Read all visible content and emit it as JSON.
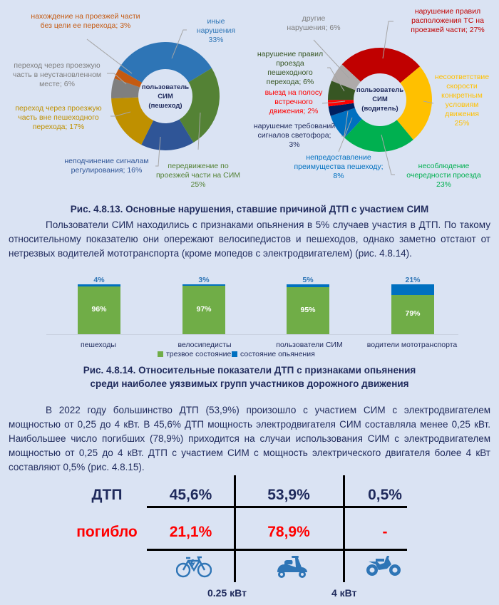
{
  "chart_data": [
    {
      "type": "pie",
      "title": "пользователь СИМ (пешеход)",
      "categories": [
        "иные нарушения",
        "передвижение по проезжей части на СИМ",
        "неподчинение сигналам регулирования",
        "переход через проезжую часть вне пешеходного перехода",
        "переход через проезжую часть в неустановленном месте",
        "нахождение на проезжей части без цели ее перехода"
      ],
      "values": [
        33,
        25,
        16,
        17,
        6,
        3
      ],
      "colors": [
        "#2e75b6",
        "#548235",
        "#2f5597",
        "#bf9000",
        "#7f7f7f",
        "#c55a11"
      ]
    },
    {
      "type": "pie",
      "title": "пользователь СИМ (водитель)",
      "categories": [
        "нарушение правил расположения ТС на проезжей части",
        "несоответствие скорости конкретным условиям движения",
        "несоблюдение очередности проезда",
        "непредоставление преимущества пешеходу",
        "нарушение требований сигналов светофора",
        "выезд на полосу встречного движения",
        "нарушение правил проезда пешеходного перехода",
        "другие нарушения"
      ],
      "values": [
        27,
        25,
        23,
        8,
        3,
        2,
        6,
        6
      ],
      "colors": [
        "#c00000",
        "#ffc000",
        "#00b050",
        "#0070c0",
        "#002060",
        "#ff0000",
        "#375623",
        "#aeaaaa"
      ]
    },
    {
      "type": "bar",
      "stacked": true,
      "title": "Рис. 4.8.14. Относительные показатели ДТП с признаками опьянения среди наиболее уязвимых групп участников дорожного движения",
      "categories": [
        "пешеходы",
        "велосипедисты",
        "пользователи СИМ",
        "водители мототранспорта"
      ],
      "series": [
        {
          "name": "трезвое состояние",
          "values": [
            96,
            97,
            95,
            79
          ],
          "color": "#70ad47"
        },
        {
          "name": "состояние опьянения",
          "values": [
            4,
            3,
            5,
            21
          ],
          "color": "#0070c0"
        }
      ],
      "legend_position": "bottom",
      "ylim": [
        0,
        100
      ],
      "grid": false
    },
    {
      "type": "table",
      "rows": [
        "ДТП",
        "погибло"
      ],
      "columns": [
        "< 0.25 кВт",
        "0.25 – 4 кВт",
        "> 4 кВт"
      ],
      "values": [
        [
          "45,6%",
          "53,9%",
          "0,5%"
        ],
        [
          "21,1%",
          "78,9%",
          "-"
        ]
      ],
      "thresholds": [
        "0.25 кВт",
        "4 кВт"
      ]
    }
  ],
  "pie1": {
    "center": [
      "пользователь",
      "СИМ",
      "(пешеход)"
    ],
    "labels": {
      "other": [
        "иные",
        "нарушения",
        "33%"
      ],
      "road_presence": [
        "нахождение на проезжей части",
        "без цели ее перехода; 3%"
      ],
      "unset_place": [
        "переход через проезжую",
        "часть в неустановленном",
        "месте; 6%"
      ],
      "outside_crossing": [
        "переход через проезжую",
        "часть вне пешеходного",
        "перехода; 17%"
      ],
      "signals": [
        "неподчинение сигналам",
        "регулирования; 16%"
      ],
      "roadway_sim": [
        "передвижение по",
        "проезжей части на СИМ",
        "25%"
      ]
    }
  },
  "pie2": {
    "center": [
      "пользователь",
      "СИМ",
      "(водитель)"
    ],
    "labels": {
      "placement": [
        "нарушение правил",
        "расположения ТС на",
        "проезжей части; 27%"
      ],
      "speed": [
        "несоответствие",
        "скорости",
        "конкретным",
        "условиям",
        "движения",
        "25%"
      ],
      "priority": [
        "несоблюдение",
        "очередности проезда",
        "23%"
      ],
      "pedestrian_priority": [
        "непредоставление",
        "преимущества пешеходу;",
        "8%"
      ],
      "traffic_light": [
        "нарушение требований",
        "сигналов светофора;",
        "3%"
      ],
      "oncoming": [
        "выезд на полосу",
        "встречного",
        "движения; 2%"
      ],
      "crossing_rules": [
        "нарушение правил",
        "проезда",
        "пешеходного",
        "перехода; 6%"
      ],
      "other": [
        "другие",
        "нарушения; 6%"
      ]
    }
  },
  "fig13_caption": "Рис. 4.8.13. Основные нарушения, ставшие причиной ДТП с участием СИМ",
  "para1": "Пользователи СИМ находились с признаками опьянения в 5% случаев участия в ДТП. По такому относительному показателю они опережают велосипедистов и пешеходов, однако заметно отстают от нетрезвых водителей мототранспорта (кроме мопедов с электродвигателем) (рис. 4.8.14).",
  "bars": {
    "items": [
      {
        "label": "пешеходы",
        "sober": "96%",
        "drunk": "4%"
      },
      {
        "label": "велосипедисты",
        "sober": "97%",
        "drunk": "3%"
      },
      {
        "label": "пользователи СИМ",
        "sober": "95%",
        "drunk": "5%"
      },
      {
        "label": "водители мототранспорта",
        "sober": "79%",
        "drunk": "21%"
      }
    ],
    "legend": {
      "sober": "трезвое состояние",
      "drunk": "состояние опьянения"
    }
  },
  "fig14_caption_line1": "Рис. 4.8.14. Относительные показатели ДТП с признаками опьянения",
  "fig14_caption_line2": "среди наиболее уязвимых групп участников дорожного движения",
  "para2": "В 2022 году большинство ДТП (53,9%) произошло с участием СИМ с электродвигателем мощностью от 0,25 до 4 кВт. В 45,6% ДТП мощность электродвигателя СИМ составляла менее 0,25 кВт. Наибольшее число погибших (78,9%) приходится на случаи использования СИМ с электродвигателем мощностью от 0,25 до 4 кВт. ДТП с участием СИМ с мощность электрического двигателя более 4 кВт составляют 0,5% (рис. 4.8.15).",
  "table": {
    "row1_label": "ДТП",
    "row1": [
      "45,6%",
      "53,9%",
      "0,5%"
    ],
    "row2_label": "погибло",
    "row2": [
      "21,1%",
      "78,9%",
      "-"
    ],
    "icons": [
      "e-bike-icon",
      "scooter-icon",
      "motorcycle-icon"
    ],
    "threshold1": "0.25 кВт",
    "threshold2": "4 кВт"
  }
}
